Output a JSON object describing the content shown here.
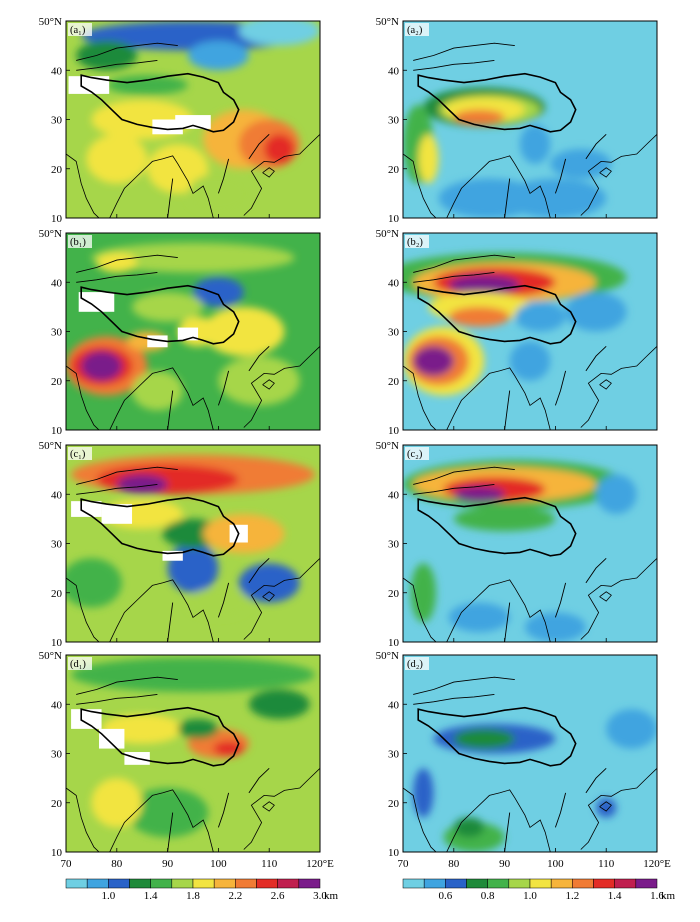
{
  "figure": {
    "lat_ticks": [
      "10",
      "20",
      "30",
      "40",
      "50°N"
    ],
    "lon_ticks": [
      "70",
      "80",
      "90",
      "100",
      "110",
      "120°E"
    ],
    "panels": [
      {
        "id": "a1",
        "label": "(a₁)",
        "scale": "left",
        "pattern": "a1"
      },
      {
        "id": "a2",
        "label": "(a₂)",
        "scale": "right",
        "pattern": "a2"
      },
      {
        "id": "b1",
        "label": "(b₁)",
        "scale": "left",
        "pattern": "b1"
      },
      {
        "id": "b2",
        "label": "(b₂)",
        "scale": "right",
        "pattern": "b2"
      },
      {
        "id": "c1",
        "label": "(c₁)",
        "scale": "left",
        "pattern": "c1"
      },
      {
        "id": "c2",
        "label": "(c₂)",
        "scale": "right",
        "pattern": "c2"
      },
      {
        "id": "d1",
        "label": "(d₁)",
        "scale": "left",
        "pattern": "d1"
      },
      {
        "id": "d2",
        "label": "(d₂)",
        "scale": "right",
        "pattern": "d2"
      }
    ],
    "colorbars": {
      "left": {
        "labels": [
          "1.0",
          "1.4",
          "1.8",
          "2.2",
          "2.6",
          "3.0"
        ],
        "unit": "km",
        "colors": [
          "#6fcfe3",
          "#3fa4e0",
          "#2962c8",
          "#1f8a3a",
          "#42b24a",
          "#a6d64a",
          "#f2e441",
          "#f6b43b",
          "#f07b34",
          "#e32c26",
          "#c01f4f",
          "#7a1b8a"
        ]
      },
      "right": {
        "labels": [
          "0.6",
          "0.8",
          "1.0",
          "1.2",
          "1.4",
          "1.6"
        ],
        "unit": "km",
        "colors": [
          "#6fcfe3",
          "#3fa4e0",
          "#2962c8",
          "#1f8a3a",
          "#42b24a",
          "#a6d64a",
          "#f2e441",
          "#f6b43b",
          "#f07b34",
          "#e32c26",
          "#c01f4f",
          "#7a1b8a"
        ]
      }
    }
  }
}
